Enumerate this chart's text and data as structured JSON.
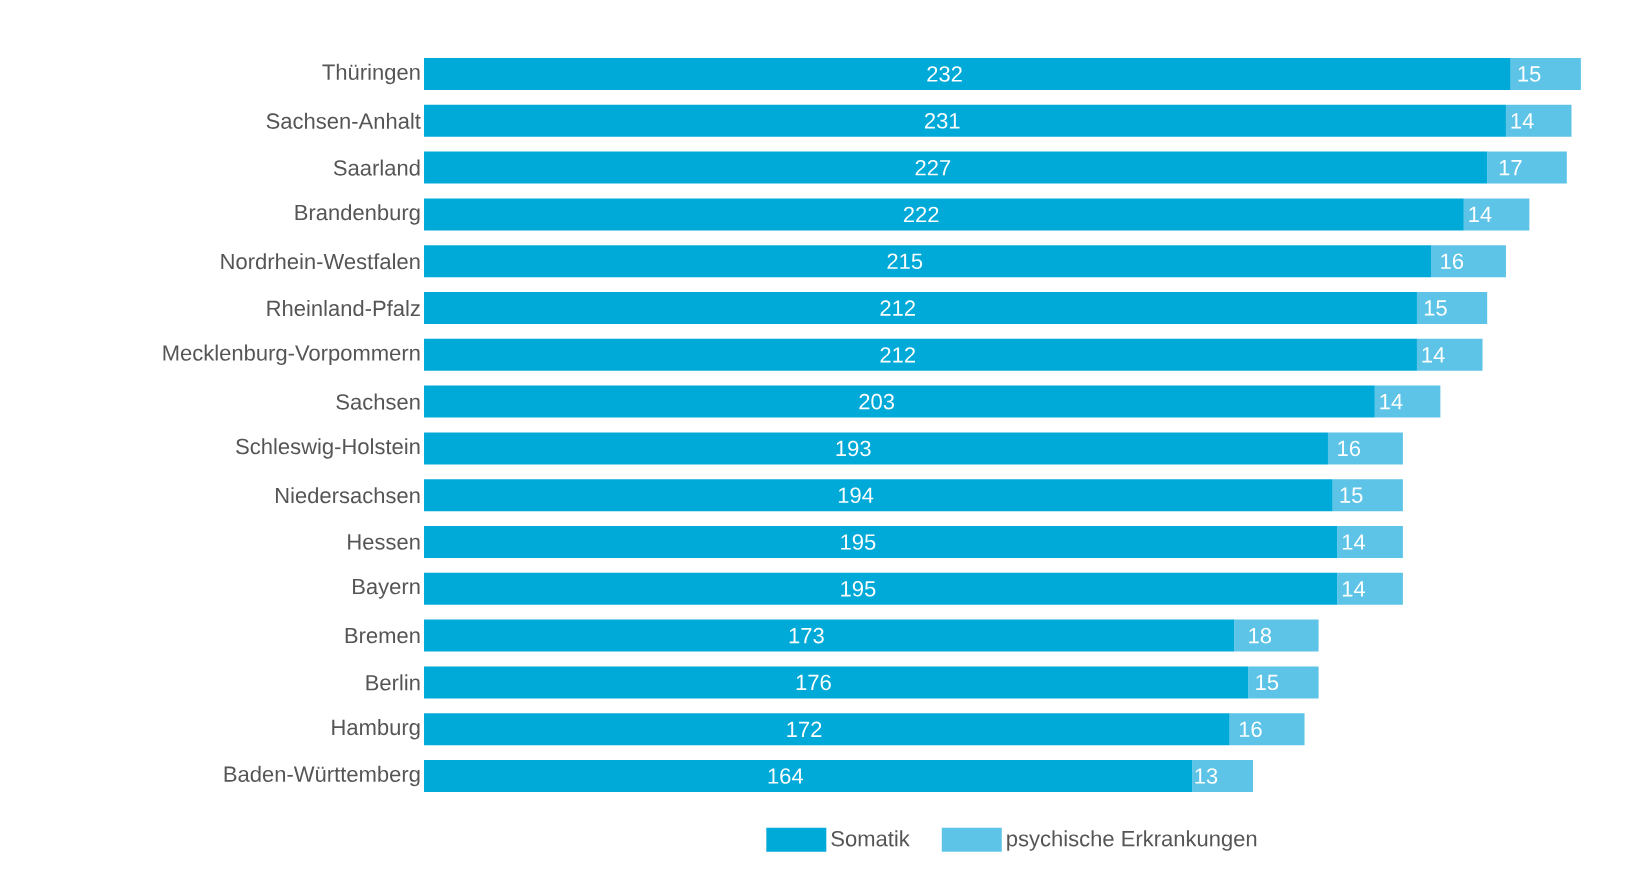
{
  "chart_data": {
    "type": "bar",
    "orientation": "horizontal",
    "stacked": true,
    "data_labels": true,
    "legend": "bottom",
    "categories": [
      "Thüringen",
      "Sachsen-Anhalt",
      "Saarland",
      "Brandenburg",
      "Nordrhein-Westfalen",
      "Rheinland-Pfalz",
      "Mecklenburg-Vorpommern",
      "Sachsen",
      "Schleswig-Holstein",
      "Niedersachsen",
      "Hessen",
      "Bayern",
      "Bremen",
      "Berlin",
      "Hamburg",
      "Baden-Württemberg"
    ],
    "series": [
      {
        "name": "Somatik",
        "color": "#00aad8",
        "values": [
          232,
          231,
          227,
          222,
          215,
          212,
          212,
          203,
          193,
          194,
          195,
          195,
          173,
          176,
          172,
          164
        ]
      },
      {
        "name": "psychische Erkrankungen",
        "color": "#5ec4e7",
        "values": [
          15,
          14,
          17,
          14,
          16,
          15,
          14,
          14,
          16,
          15,
          14,
          14,
          18,
          15,
          16,
          13
        ]
      }
    ]
  }
}
